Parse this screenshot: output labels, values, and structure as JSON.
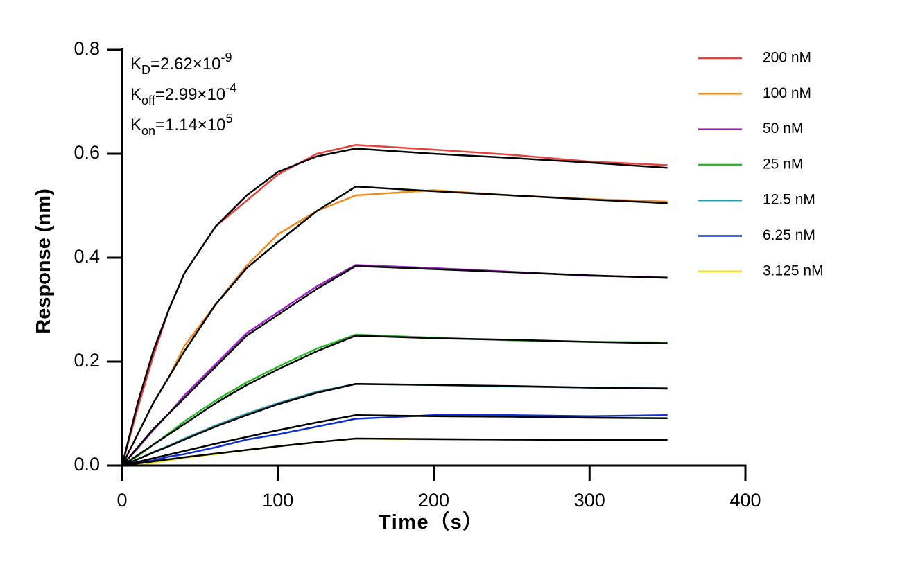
{
  "chart_data": {
    "type": "line",
    "x_label": "Time（s）",
    "y_label": "Response (nm)",
    "xlim": [
      0,
      400
    ],
    "xticks": [
      0,
      100,
      200,
      300,
      400
    ],
    "ylim": [
      0,
      0.8
    ],
    "yticks": [
      {
        "value": 0,
        "label": "0.0"
      },
      0.2,
      0.4,
      0.6,
      0.8
    ],
    "annotations": [
      {
        "base": "K",
        "sub": "D",
        "text": "=2.62×10",
        "sup": "-9"
      },
      {
        "base": "K",
        "sub": "off",
        "text": "=2.99×10",
        "sup": "-4"
      },
      {
        "base": "K",
        "sub": "on",
        "text": "=1.14×10",
        "sup": "5"
      }
    ],
    "fit_color": "#000000",
    "x": [
      0,
      10,
      20,
      30,
      40,
      60,
      80,
      100,
      125,
      150,
      200,
      250,
      300,
      350
    ],
    "series": [
      {
        "name": "200 nM",
        "color": "#e8413c",
        "values": [
          0,
          0.11,
          0.21,
          0.3,
          0.37,
          0.46,
          0.51,
          0.56,
          0.6,
          0.617,
          0.608,
          0.598,
          0.585,
          0.578
        ],
        "fit": [
          0,
          0.12,
          0.22,
          0.3,
          0.37,
          0.46,
          0.52,
          0.565,
          0.595,
          0.61,
          0.6,
          0.592,
          0.583,
          0.573
        ]
      },
      {
        "name": "100 nM",
        "color": "#f28a1e",
        "values": [
          0,
          0.06,
          0.12,
          0.17,
          0.23,
          0.31,
          0.385,
          0.445,
          0.49,
          0.52,
          0.53,
          0.52,
          0.513,
          0.508
        ],
        "fit": [
          0,
          0.06,
          0.12,
          0.17,
          0.22,
          0.31,
          0.38,
          0.43,
          0.49,
          0.537,
          0.528,
          0.52,
          0.512,
          0.505
        ]
      },
      {
        "name": "50 nM",
        "color": "#a020c8",
        "values": [
          0,
          0.033,
          0.068,
          0.1,
          0.135,
          0.195,
          0.255,
          0.295,
          0.345,
          0.386,
          0.38,
          0.373,
          0.365,
          0.362
        ],
        "fit": [
          0,
          0.035,
          0.07,
          0.1,
          0.13,
          0.19,
          0.25,
          0.29,
          0.34,
          0.384,
          0.378,
          0.372,
          0.366,
          0.361
        ]
      },
      {
        "name": "25 nM",
        "color": "#2ab82a",
        "values": [
          0,
          0.018,
          0.04,
          0.062,
          0.085,
          0.125,
          0.16,
          0.19,
          0.225,
          0.252,
          0.246,
          0.241,
          0.238,
          0.237
        ],
        "fit": [
          0,
          0.02,
          0.04,
          0.06,
          0.08,
          0.12,
          0.155,
          0.185,
          0.22,
          0.25,
          0.245,
          0.242,
          0.238,
          0.235
        ]
      },
      {
        "name": "12.5 nM",
        "color": "#2a9fb0",
        "values": [
          0,
          0.012,
          0.026,
          0.038,
          0.052,
          0.077,
          0.1,
          0.12,
          0.142,
          0.157,
          0.155,
          0.152,
          0.15,
          0.149
        ],
        "fit": [
          0,
          0.012,
          0.025,
          0.037,
          0.05,
          0.075,
          0.097,
          0.118,
          0.14,
          0.157,
          0.155,
          0.153,
          0.15,
          0.148
        ]
      },
      {
        "name": "6.25 nM",
        "color": "#1030d0",
        "values": [
          0,
          0.005,
          0.01,
          0.017,
          0.022,
          0.035,
          0.05,
          0.06,
          0.075,
          0.09,
          0.097,
          0.097,
          0.095,
          0.097
        ],
        "fit": [
          0,
          0.007,
          0.014,
          0.021,
          0.028,
          0.042,
          0.055,
          0.068,
          0.083,
          0.097,
          0.095,
          0.094,
          0.092,
          0.091
        ]
      },
      {
        "name": "3.125 nM",
        "color": "#f0e020",
        "values": [
          0,
          0.002,
          0.005,
          0.01,
          0.015,
          0.022,
          0.03,
          0.037,
          0.045,
          0.052,
          0.05,
          0.05,
          0.05,
          0.05
        ],
        "fit": [
          0,
          0.004,
          0.008,
          0.012,
          0.016,
          0.023,
          0.03,
          0.037,
          0.045,
          0.052,
          0.051,
          0.05,
          0.049,
          0.049
        ]
      }
    ]
  }
}
